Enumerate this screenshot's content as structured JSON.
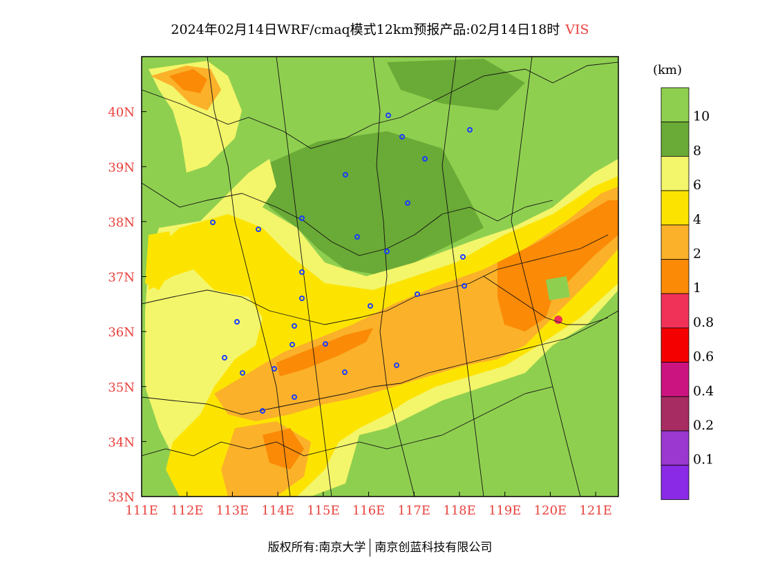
{
  "title": {
    "main": "2024年02月14日WRF/cmaq模式12km预报产品:02月14日18时",
    "variable": "VIS"
  },
  "map": {
    "lon_min": 111,
    "lon_max": 121.5,
    "lat_min": 33,
    "lat_max": 41,
    "x_ticks": [
      "111E",
      "112E",
      "113E",
      "114E",
      "115E",
      "116E",
      "117E",
      "118E",
      "119E",
      "120E",
      "121E"
    ],
    "y_ticks": [
      "33N",
      "34N",
      "35N",
      "36N",
      "37N",
      "38N",
      "39N",
      "40N"
    ]
  },
  "colorbar": {
    "unit": "(km)",
    "labels": [
      "10",
      "8",
      "6",
      "4",
      "2",
      "1",
      "0.8",
      "0.6",
      "0.4",
      "0.2",
      "0.1"
    ],
    "colors": [
      "#8fcf50",
      "#6aaa36",
      "#f3f56a",
      "#fde400",
      "#fbb12a",
      "#fb8a06",
      "#f03259",
      "#f40000",
      "#cc1480",
      "#a72c61",
      "#9a38cf",
      "#8a2ae6"
    ]
  },
  "colors": {
    "tick_red": "#e8413c",
    "station_blue": "#1a3cff"
  },
  "footer": {
    "left": "版权所有:南京大学",
    "right": "南京创蓝科技有限公司"
  }
}
